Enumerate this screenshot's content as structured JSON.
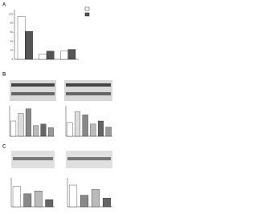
{
  "panels": [
    "A",
    "B",
    "C"
  ],
  "chart_data": [
    {
      "type": "bar",
      "categories": [
        null,
        null,
        null
      ],
      "series": [
        {
          "color": "#ffffff",
          "values": [
            95,
            12,
            18
          ]
        },
        {
          "color": "#555555",
          "values": [
            62,
            18,
            22
          ]
        }
      ],
      "ylim": [
        0,
        110
      ],
      "yticks": [
        0,
        20,
        40,
        60,
        80,
        100
      ]
    },
    {
      "type": "bar",
      "categories": [
        null,
        null,
        null,
        null,
        null,
        null
      ],
      "values": [
        50,
        75,
        90,
        35,
        40,
        28
      ],
      "colors": [
        "#ffffff",
        "#dddddd",
        "#888888",
        "#bbbbbb",
        "#666666",
        "#999999"
      ],
      "ylim": [
        0,
        100
      ]
    },
    {
      "type": "bar",
      "categories": [
        null,
        null,
        null,
        null,
        null,
        null
      ],
      "values": [
        45,
        80,
        70,
        40,
        50,
        30
      ],
      "colors": [
        "#ffffff",
        "#dddddd",
        "#888888",
        "#bbbbbb",
        "#666666",
        "#999999"
      ],
      "ylim": [
        0,
        100
      ]
    },
    {
      "type": "bar",
      "categories": [
        null,
        null,
        null,
        null
      ],
      "values": [
        70,
        45,
        55,
        25
      ],
      "colors": [
        "#ffffff",
        "#888888",
        "#bbbbbb",
        "#666666"
      ],
      "ylim": [
        0,
        100
      ]
    },
    {
      "type": "bar",
      "categories": [
        null,
        null,
        null,
        null
      ],
      "values": [
        75,
        40,
        60,
        30
      ],
      "colors": [
        "#ffffff",
        "#888888",
        "#bbbbbb",
        "#666666"
      ],
      "ylim": [
        0,
        100
      ]
    }
  ]
}
